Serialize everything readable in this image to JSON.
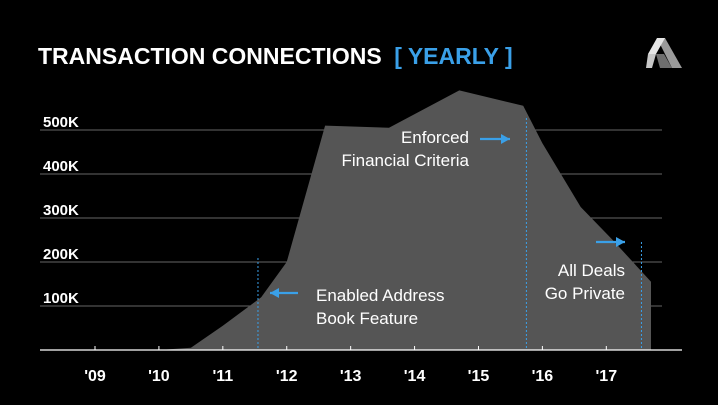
{
  "header": {
    "title": "TRANSACTION CONNECTIONS",
    "title_suffix": "[ YEARLY ]"
  },
  "logo": {
    "icon": "stylized-A-logo"
  },
  "colors": {
    "background": "#000000",
    "area": "#555555",
    "accent": "#3aa0e8",
    "gridline": "#666666",
    "text": "#ffffff"
  },
  "chart_data": {
    "type": "area",
    "title": "TRANSACTION CONNECTIONS [ YEARLY ]",
    "xlabel": "",
    "ylabel": "",
    "x_ticks": [
      "'09",
      "'10",
      "'11",
      "'12",
      "'13",
      "'14",
      "'15",
      "'16",
      "'17"
    ],
    "y_ticks": [
      "100K",
      "200K",
      "300K",
      "400K",
      "500K"
    ],
    "y_tick_values": [
      100000,
      200000,
      300000,
      400000,
      500000
    ],
    "xlim": [
      2009,
      2018.2
    ],
    "ylim": [
      0,
      500000
    ],
    "grid": true,
    "series": [
      {
        "x": [
          2010.0,
          2010.5,
          2011.0,
          2011.6,
          2012.0,
          2012.6,
          2013.6,
          2014.7,
          2015.7,
          2016.0,
          2016.6,
          2017.1,
          2017.7,
          2017.7
        ],
        "y": [
          0,
          5000,
          55000,
          120000,
          200000,
          510000,
          505000,
          590000,
          555000,
          470000,
          325000,
          250000,
          155000,
          0
        ]
      }
    ],
    "annotations": [
      {
        "x": 2011.55,
        "arrow": "left",
        "lines": [
          "Enabled Address",
          "Book Feature"
        ]
      },
      {
        "x": 2015.75,
        "arrow": "right",
        "lines": [
          "Enforced",
          "Financial Criteria"
        ]
      },
      {
        "x": 2017.55,
        "arrow": "right",
        "lines": [
          "All Deals",
          "Go Private"
        ]
      }
    ]
  }
}
